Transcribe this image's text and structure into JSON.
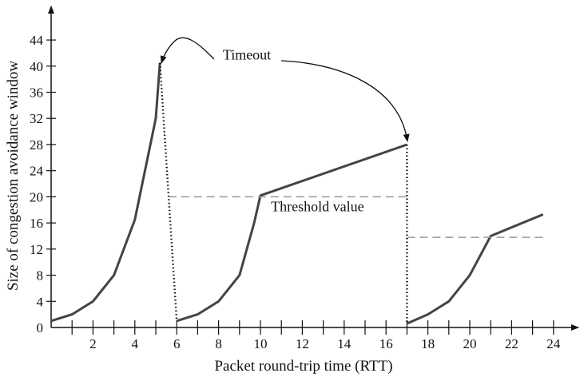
{
  "chart_data": {
    "type": "line",
    "xlabel": "Packet round-trip time (RTT)",
    "ylabel": "Size of congestion avoidance window",
    "xlim": [
      0,
      25
    ],
    "ylim": [
      0,
      46
    ],
    "x_ticks": [
      2,
      4,
      6,
      8,
      10,
      12,
      14,
      16,
      18,
      20,
      22,
      24
    ],
    "y_ticks": [
      0,
      4,
      8,
      12,
      16,
      20,
      24,
      28,
      32,
      36,
      40,
      44
    ],
    "x_minor_ticks": [
      1,
      3,
      5,
      7,
      9,
      11,
      13,
      15,
      17,
      19,
      21,
      23
    ],
    "grid": false,
    "series": [
      {
        "style": "solid",
        "color": "#444444",
        "segments": [
          [
            [
              0,
              1
            ],
            [
              1,
              2
            ],
            [
              2,
              4
            ],
            [
              3,
              8
            ],
            [
              4,
              16.5
            ],
            [
              5,
              32
            ],
            [
              5.2,
              40.5
            ]
          ],
          [
            [
              6,
              1
            ],
            [
              7,
              2
            ],
            [
              8,
              4
            ],
            [
              9,
              8
            ],
            [
              9.7,
              16
            ],
            [
              10,
              20.2
            ],
            [
              17,
              28
            ]
          ],
          [
            [
              17,
              0.6
            ],
            [
              18,
              2
            ],
            [
              19,
              4
            ],
            [
              20,
              8
            ],
            [
              21,
              14
            ],
            [
              23.5,
              17.3
            ]
          ]
        ]
      },
      {
        "style": "dotted",
        "color": "#111111",
        "segments": [
          [
            [
              5.2,
              40.5
            ],
            [
              6,
              1
            ]
          ],
          [
            [
              17,
              28
            ],
            [
              17,
              0.6
            ]
          ]
        ]
      },
      {
        "style": "dashed",
        "color": "#999999",
        "segments": [
          [
            [
              5.6,
              20
            ],
            [
              17,
              20
            ]
          ],
          [
            [
              17,
              13.8
            ],
            [
              23.5,
              13.8
            ]
          ]
        ]
      }
    ],
    "annotations": [
      {
        "text": "Timeout",
        "x": 8.2,
        "y": 41
      },
      {
        "text": "Threshold value",
        "x": 10.5,
        "y": 17.8
      }
    ]
  }
}
